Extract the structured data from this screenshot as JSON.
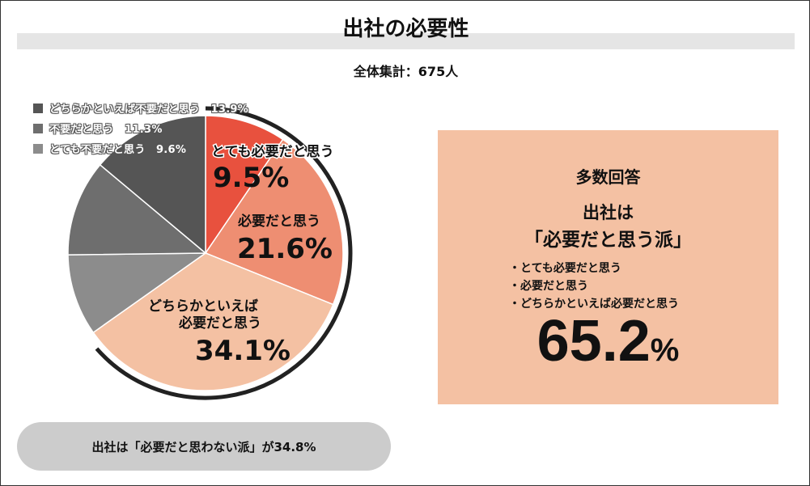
{
  "title": "出社の必要性",
  "subtitle": "全体集計：675人",
  "colors": {
    "very_necessary": "#e8513e",
    "necessary": "#ee8e72",
    "somewhat_necessary": "#f4c1a3",
    "not_at_all": "#8c8c8c",
    "unnecessary": "#6e6e6e",
    "somewhat_unnecessary": "#555555",
    "summary_box": "#f4c1a3",
    "pill": "#cccccc"
  },
  "legend": [
    {
      "label": "どちらかといえば不要だと思う　13.9%",
      "color": "#555555"
    },
    {
      "label": "不要だと思う　11.3%",
      "color": "#6e6e6e"
    },
    {
      "label": "とても不要だと思う　9.6%",
      "color": "#8c8c8c"
    }
  ],
  "slice_labels": {
    "very_necessary_name": "とても必要だと思う",
    "very_necessary_value": "9.5%",
    "necessary_name": "必要だと思う",
    "necessary_value": "21.6%",
    "somewhat_name_line1": "どちらかといえば",
    "somewhat_name_line2": "必要だと思う",
    "somewhat_value": "34.1%"
  },
  "chart_data": {
    "type": "pie",
    "title": "出社の必要性",
    "subtitle": "全体集計：675人",
    "start_angle_deg": 0,
    "direction": "clockwise",
    "slices": [
      {
        "label": "とても必要だと思う",
        "value": 9.5,
        "color": "#e8513e"
      },
      {
        "label": "必要だと思う",
        "value": 21.6,
        "color": "#ee8e72"
      },
      {
        "label": "どちらかといえば必要だと思う",
        "value": 34.1,
        "color": "#f4c1a3"
      },
      {
        "label": "とても不要だと思う",
        "value": 9.6,
        "color": "#8c8c8c"
      },
      {
        "label": "不要だと思う",
        "value": 11.3,
        "color": "#6e6e6e"
      },
      {
        "label": "どちらかといえば不要だと思う",
        "value": 13.9,
        "color": "#555555"
      }
    ],
    "legend_position": "top-left"
  },
  "summary": {
    "heading": "多数回答",
    "line1": "出社は",
    "line2": "「必要だと思う派」",
    "items": [
      "・とても必要だと思う",
      "・必要だと思う",
      "・どちらかといえば必要だと思う"
    ],
    "total_number": "65.2",
    "total_unit": "%"
  },
  "footer_pill": "出社は「必要だと思わない派」が34.8%"
}
